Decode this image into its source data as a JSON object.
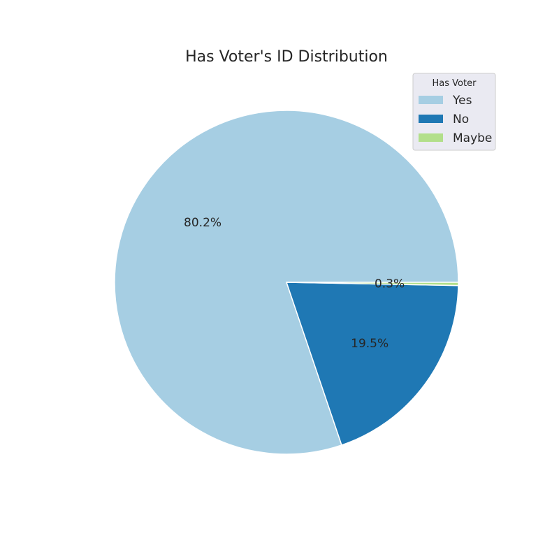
{
  "chart_data": {
    "type": "pie",
    "title": "Has Voter's ID Distribution",
    "categories": [
      "Yes",
      "No",
      "Maybe"
    ],
    "values": [
      80.2,
      19.5,
      0.3
    ],
    "value_labels": [
      "80.2%",
      "19.5%",
      "0.3%"
    ],
    "colors": [
      "#a6cee3",
      "#1f78b4",
      "#b2df8a"
    ],
    "start_angle_deg": 0,
    "direction": "counterclockwise",
    "legend": {
      "title": "Has Voter",
      "placement": "top-right"
    }
  }
}
